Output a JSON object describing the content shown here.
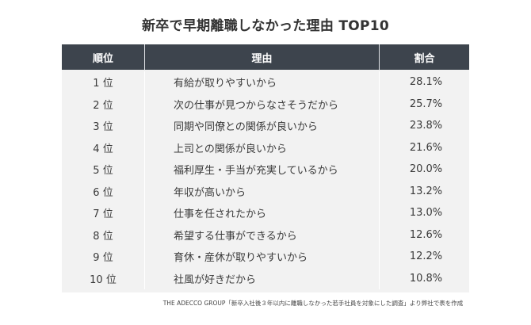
{
  "title": "新卒で早期離職しなかった理由 TOP10",
  "table": {
    "headers": [
      "順位",
      "理由",
      "割合"
    ],
    "rows": [
      {
        "rank": "1 位",
        "reason": "有給が取りやすいから",
        "pct": "28.1%"
      },
      {
        "rank": "2 位",
        "reason": "次の仕事が見つからなさそうだから",
        "pct": "25.7%"
      },
      {
        "rank": "3 位",
        "reason": "同期や同僚との関係が良いから",
        "pct": "23.8%"
      },
      {
        "rank": "4 位",
        "reason": "上司との関係が良いから",
        "pct": "21.6%"
      },
      {
        "rank": "5 位",
        "reason": "福利厚生・手当が充実しているから",
        "pct": "20.0%"
      },
      {
        "rank": "6 位",
        "reason": "年収が高いから",
        "pct": "13.2%"
      },
      {
        "rank": "7 位",
        "reason": "仕事を任されたから",
        "pct": "13.0%"
      },
      {
        "rank": "8 位",
        "reason": "希望する仕事ができるから",
        "pct": "12.6%"
      },
      {
        "rank": "9 位",
        "reason": "育休・産休が取りやすいから",
        "pct": "12.2%"
      },
      {
        "rank": "10 位",
        "reason": "社風が好きだから",
        "pct": "10.8%"
      }
    ]
  },
  "footer": "THE ADECCO GROUP「新卒入社後３年以内に離職しなかった若手社員を対象にした調査」より弊社で表を作成",
  "colors": {
    "header_bg": "#3d444d",
    "body_bg": "#f2f2f2",
    "header_text": "#ffffff",
    "body_text": "#3a3a3a"
  },
  "chart_data": {
    "type": "table",
    "title": "新卒で早期離職しなかった理由 TOP10",
    "columns": [
      "順位",
      "理由",
      "割合"
    ],
    "categories": [
      "有給が取りやすいから",
      "次の仕事が見つからなさそうだから",
      "同期や同僚との関係が良いから",
      "上司との関係が良いから",
      "福利厚生・手当が充実しているから",
      "年収が高いから",
      "仕事を任されたから",
      "希望する仕事ができるから",
      "育休・産休が取りやすいから",
      "社風が好きだから"
    ],
    "ranks": [
      1,
      2,
      3,
      4,
      5,
      6,
      7,
      8,
      9,
      10
    ],
    "values": [
      28.1,
      25.7,
      23.8,
      21.6,
      20.0,
      13.2,
      13.0,
      12.6,
      12.2,
      10.8
    ],
    "unit": "%",
    "source": "THE ADECCO GROUP「新卒入社後３年以内に離職しなかった若手社員を対象にした調査」より弊社で表を作成"
  }
}
